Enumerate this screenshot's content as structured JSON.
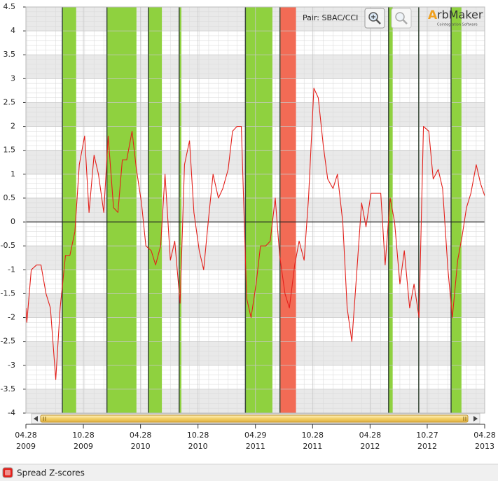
{
  "toolbar": {
    "pair": "Pair: SBAC/CCI",
    "logo": "rbMaker",
    "logo_initial": "A",
    "logo_tagline": "Cointegration Software"
  },
  "chart_data": {
    "type": "line",
    "x": [
      "2009-04-28",
      "2009-05-01",
      "2009-05-15",
      "2009-06-01",
      "2009-06-15",
      "2009-07-01",
      "2009-07-15",
      "2009-08-01",
      "2009-08-15",
      "2009-09-01",
      "2009-09-15",
      "2009-10-01",
      "2009-10-15",
      "2009-11-01",
      "2009-11-15",
      "2009-12-01",
      "2009-12-15",
      "2010-01-01",
      "2010-01-15",
      "2010-02-01",
      "2010-02-15",
      "2010-03-01",
      "2010-03-15",
      "2010-04-01",
      "2010-04-15",
      "2010-05-01",
      "2010-05-15",
      "2010-06-01",
      "2010-06-15",
      "2010-07-01",
      "2010-07-15",
      "2010-08-01",
      "2010-08-15",
      "2010-09-01",
      "2010-09-15",
      "2010-10-01",
      "2010-10-15",
      "2010-11-01",
      "2010-11-15",
      "2010-12-01",
      "2010-12-15",
      "2011-01-01",
      "2011-01-15",
      "2011-02-01",
      "2011-02-15",
      "2011-03-01",
      "2011-03-15",
      "2011-04-01",
      "2011-04-15",
      "2011-05-01",
      "2011-05-15",
      "2011-06-01",
      "2011-06-15",
      "2011-07-01",
      "2011-07-15",
      "2011-08-01",
      "2011-08-15",
      "2011-09-01",
      "2011-09-15",
      "2011-10-01",
      "2011-10-15",
      "2011-11-01",
      "2011-11-15",
      "2011-12-01",
      "2011-12-15",
      "2012-01-01",
      "2012-01-15",
      "2012-02-01",
      "2012-02-15",
      "2012-03-01",
      "2012-03-15",
      "2012-04-01",
      "2012-04-15",
      "2012-05-01",
      "2012-05-15",
      "2012-06-01",
      "2012-06-15",
      "2012-07-01",
      "2012-07-15",
      "2012-08-01",
      "2012-08-15",
      "2012-09-01",
      "2012-09-15",
      "2012-10-01",
      "2012-10-15",
      "2012-11-01",
      "2012-11-15",
      "2012-12-01",
      "2012-12-15",
      "2013-01-01",
      "2013-01-15",
      "2013-02-01",
      "2013-02-15",
      "2013-03-01",
      "2013-03-15",
      "2013-04-01",
      "2013-04-15",
      "2013-04-28"
    ],
    "series": [
      {
        "name": "Spread Z-scores",
        "color": "#e3201b",
        "values": [
          -1.8,
          -2.1,
          -1.0,
          -0.9,
          -0.9,
          -1.5,
          -1.8,
          -3.3,
          -1.8,
          -0.7,
          -0.7,
          -0.2,
          1.2,
          1.8,
          0.2,
          1.4,
          1.0,
          0.2,
          1.8,
          0.3,
          0.2,
          1.3,
          1.3,
          1.9,
          1.1,
          0.4,
          -0.5,
          -0.6,
          -0.9,
          -0.5,
          1.0,
          -0.8,
          -0.4,
          -1.7,
          1.2,
          1.7,
          0.2,
          -0.6,
          -1.0,
          0.1,
          1.0,
          0.5,
          0.7,
          1.1,
          1.9,
          2.0,
          2.0,
          -1.6,
          -2.0,
          -1.3,
          -0.5,
          -0.5,
          -0.4,
          0.5,
          -0.7,
          -1.5,
          -1.8,
          -0.9,
          -0.4,
          -0.8,
          0.5,
          2.8,
          2.6,
          1.6,
          0.9,
          0.7,
          1.0,
          0.0,
          -1.8,
          -2.5,
          -1.2,
          0.4,
          -0.1,
          0.6,
          0.6,
          0.6,
          -0.9,
          0.5,
          0.0,
          -1.3,
          -0.6,
          -1.8,
          -1.3,
          -2.0,
          2.0,
          1.9,
          0.9,
          1.1,
          0.7,
          -1.0,
          -2.0,
          -0.8,
          -0.3,
          0.3,
          0.6,
          1.2,
          0.8,
          0.55
        ]
      }
    ],
    "regions": [
      {
        "start": "2009-08-22",
        "end": "2009-10-05",
        "color": "#8fd13f"
      },
      {
        "start": "2010-01-11",
        "end": "2010-04-15",
        "color": "#8fd13f"
      },
      {
        "start": "2010-05-23",
        "end": "2010-07-05",
        "color": "#8fd13f"
      },
      {
        "start": "2010-08-29",
        "end": "2010-09-05",
        "color": "#8fd13f"
      },
      {
        "start": "2011-03-28",
        "end": "2011-06-22",
        "color": "#8fd13f"
      },
      {
        "start": "2011-07-16",
        "end": "2011-09-05",
        "color": "#f26b55"
      },
      {
        "start": "2012-06-26",
        "end": "2012-07-09",
        "color": "#8fd13f"
      },
      {
        "start": "2013-01-11",
        "end": "2013-02-13",
        "color": "#8fd13f"
      }
    ],
    "signals": [
      "2009-08-22",
      "2010-01-11",
      "2010-05-23",
      "2010-08-29",
      "2011-03-28",
      "2011-07-16",
      "2012-06-26",
      "2012-09-30",
      "2013-01-11"
    ],
    "xlim": [
      "2009-04-28",
      "2013-04-28"
    ],
    "xticks": [
      {
        "value": "2009-04-28",
        "label": "04.28 2009"
      },
      {
        "value": "2009-10-28",
        "label": "10.28 2009"
      },
      {
        "value": "2010-04-28",
        "label": "04.28 2010"
      },
      {
        "value": "2010-10-28",
        "label": "10.28 2010"
      },
      {
        "value": "2011-04-29",
        "label": "04.29 2011"
      },
      {
        "value": "2011-10-28",
        "label": "10.28 2011"
      },
      {
        "value": "2012-04-28",
        "label": "04.28 2012"
      },
      {
        "value": "2012-10-27",
        "label": "10.27 2012"
      },
      {
        "value": "2013-04-28",
        "label": "04.28 2013"
      }
    ],
    "ylim": [
      -4,
      4.5
    ],
    "yticks": [
      -4,
      -3.5,
      -3,
      -2.5,
      -2,
      -1.5,
      -1,
      -0.5,
      0,
      0.5,
      1,
      1.5,
      2,
      2.5,
      3,
      3.5,
      4,
      4.5
    ],
    "grid": true,
    "legend": "bottom-left"
  }
}
